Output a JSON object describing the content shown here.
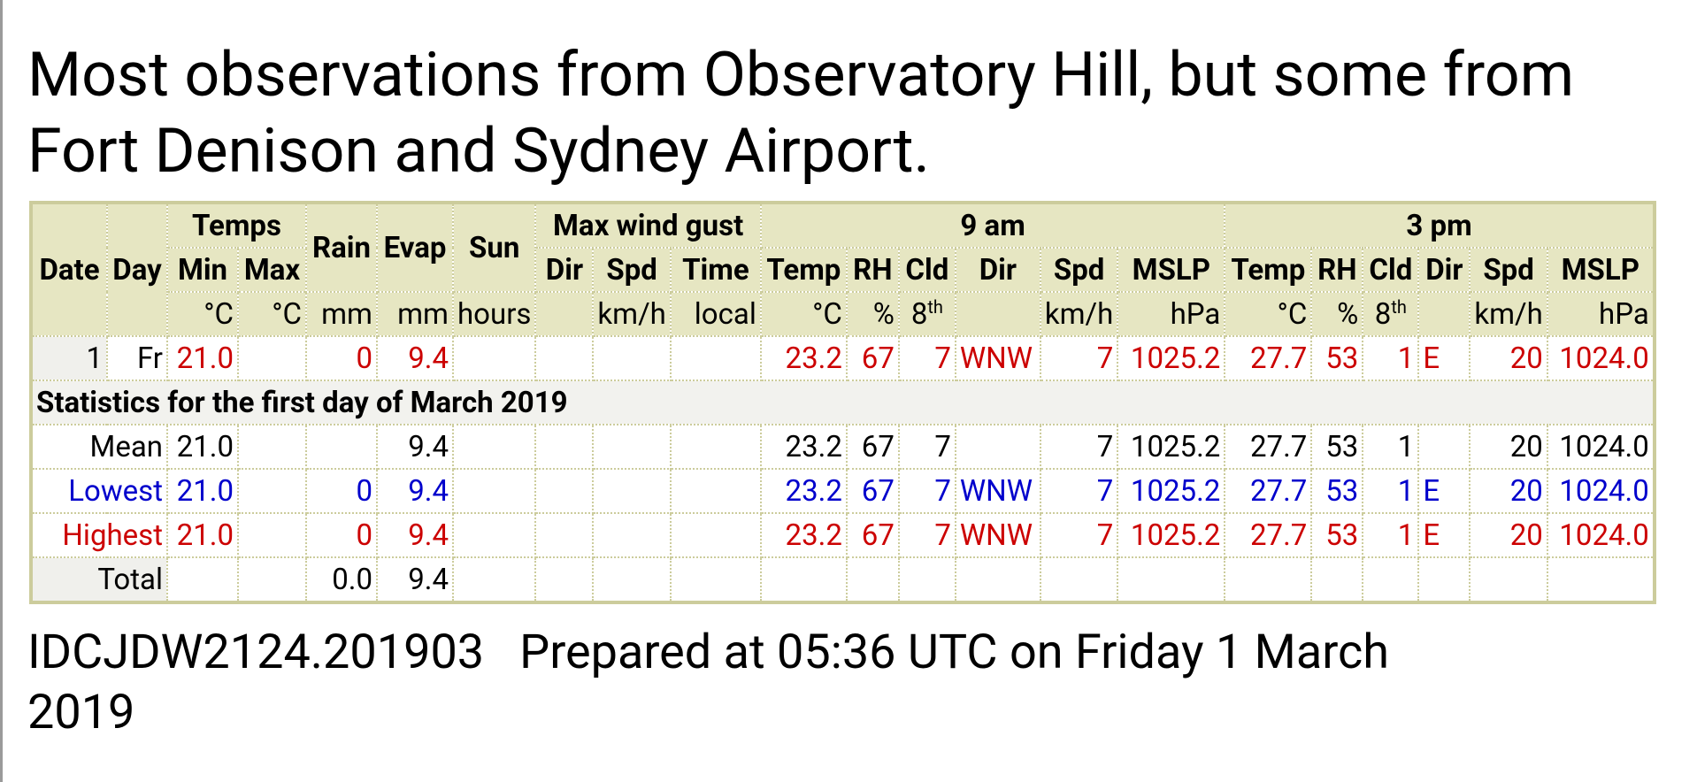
{
  "heading": "Most observations from Observatory Hill, but some from Fort Denison and Sydney Airport.",
  "table": {
    "group_headers": {
      "date": "Date",
      "day": "Day",
      "temps": "Temps",
      "rain": "Rain",
      "evap": "Evap",
      "sun": "Sun",
      "gust": "Max wind gust",
      "am": "9 am",
      "pm": "3 pm"
    },
    "column_headers": [
      "Min",
      "Max",
      "Dir",
      "Spd",
      "Time",
      "Temp",
      "RH",
      "Cld",
      "Dir",
      "Spd",
      "MSLP",
      "Temp",
      "RH",
      "Cld",
      "Dir",
      "Spd",
      "MSLP"
    ],
    "units": [
      "°C",
      "°C",
      "mm",
      "mm",
      "hours",
      null,
      "km/h",
      "local",
      "°C",
      "%",
      {
        "base": "8",
        "sup": "th"
      },
      null,
      "km/h",
      "hPa",
      "°C",
      "%",
      {
        "base": "8",
        "sup": "th"
      },
      null,
      "km/h",
      "hPa"
    ],
    "rows": [
      {
        "color": "#cc0000",
        "cells": [
          "1",
          "Fr",
          "21.0",
          null,
          "0",
          "9.4",
          null,
          null,
          null,
          null,
          "23.2",
          "67",
          "7",
          "WNW",
          "7",
          "1025.2",
          "27.7",
          "53",
          "1",
          "E",
          "20",
          "1024.0"
        ]
      }
    ],
    "statistics_title": "Statistics for the first day of March 2019",
    "statistics": [
      {
        "label": "Mean",
        "color": "#000000",
        "cells": [
          "21.0",
          null,
          null,
          "9.4",
          null,
          null,
          null,
          null,
          "23.2",
          "67",
          "7",
          null,
          "7",
          "1025.2",
          "27.7",
          "53",
          "1",
          null,
          "20",
          "1024.0"
        ]
      },
      {
        "label": "Lowest",
        "color": "#0000cc",
        "cells": [
          "21.0",
          null,
          "0",
          "9.4",
          null,
          null,
          null,
          null,
          "23.2",
          "67",
          "7",
          "WNW",
          "7",
          "1025.2",
          "27.7",
          "53",
          "1",
          "E",
          "20",
          "1024.0"
        ]
      },
      {
        "label": "Highest",
        "color": "#cc0000",
        "cells": [
          "21.0",
          null,
          "0",
          "9.4",
          null,
          null,
          null,
          null,
          "23.2",
          "67",
          "7",
          "WNW",
          "7",
          "1025.2",
          "27.7",
          "53",
          "1",
          "E",
          "20",
          "1024.0"
        ]
      },
      {
        "label": "Total",
        "color": "#000000",
        "cells": [
          null,
          null,
          "0.0",
          "9.4",
          null,
          null,
          null,
          null,
          null,
          null,
          null,
          null,
          null,
          null,
          null,
          null,
          null,
          null,
          null,
          null
        ]
      }
    ]
  },
  "footer": {
    "code": "IDCJDW2124.201903",
    "prepared": "Prepared at 05:36 UTC on Friday 1 March 2019"
  }
}
